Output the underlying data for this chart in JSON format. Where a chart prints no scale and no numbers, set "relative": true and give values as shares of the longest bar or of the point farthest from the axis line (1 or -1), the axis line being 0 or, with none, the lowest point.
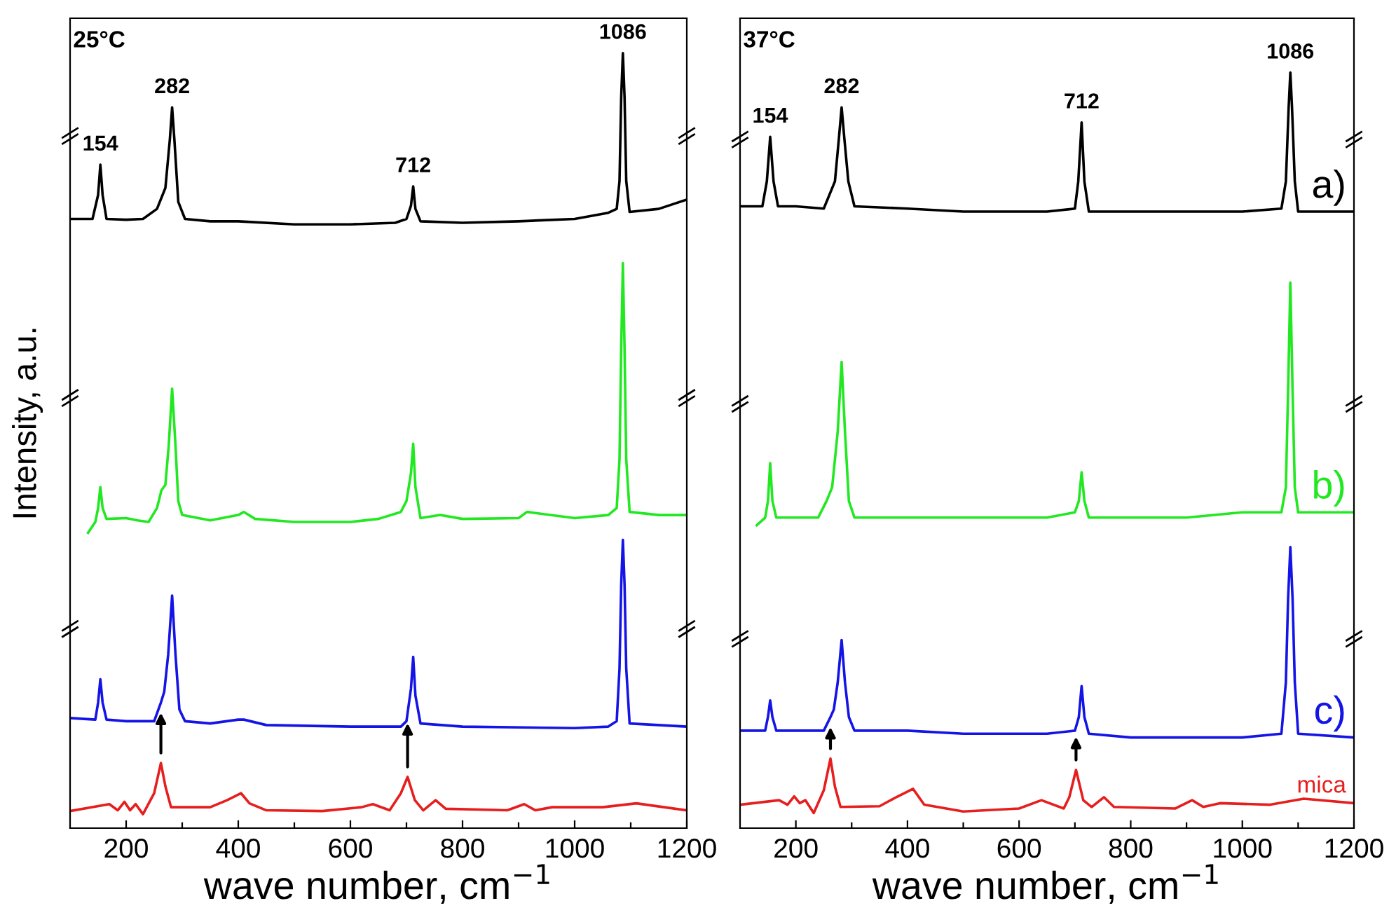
{
  "chart_data": [
    {
      "type": "line",
      "relative": true,
      "xlabel": "wave number, cm$^{−1}$",
      "ylabel": "Intensity, a.u.",
      "xlim": [
        100,
        1200
      ],
      "xticks": [
        200,
        {
          "value": 300,
          "label": null
        },
        400,
        {
          "value": 500,
          "label": null
        },
        600,
        {
          "value": 700,
          "label": null
        },
        800,
        {
          "value": 900,
          "label": null
        },
        1000,
        {
          "value": 1100,
          "label": null
        },
        1200
      ],
      "tick_labels": "x",
      "annotations": [
        "25°C",
        {
          "text": "154",
          "x": 154,
          "y": 0.856
        },
        {
          "text": "282",
          "x": 282,
          "y": 0.93
        },
        {
          "text": "712",
          "x": 712,
          "y": 0.828
        },
        {
          "text": "1086",
          "x": 1086,
          "y": 1
        }
      ],
      "series": [
        {
          "color": "#000000",
          "x": [
            100,
            140,
            150,
            154,
            158,
            165,
            200,
            230,
            255,
            270,
            278,
            282,
            286,
            293,
            305,
            350,
            400,
            500,
            600,
            680,
            700,
            708,
            712,
            716,
            725,
            800,
            900,
            1000,
            1060,
            1075,
            1080,
            1083,
            1086,
            1089,
            1092,
            1098,
            1150,
            1200
          ],
          "values": [
            0.786,
            0.786,
            0.817,
            0.856,
            0.817,
            0.786,
            0.785,
            0.786,
            0.799,
            0.826,
            0.889,
            0.93,
            0.889,
            0.808,
            0.786,
            0.783,
            0.783,
            0.779,
            0.779,
            0.781,
            0.786,
            0.803,
            0.828,
            0.799,
            0.783,
            0.781,
            0.783,
            0.786,
            0.794,
            0.799,
            0.835,
            0.943,
            1,
            0.943,
            0.835,
            0.795,
            0.799,
            0.811
          ]
        },
        {
          "color": "#22e822",
          "x": [
            132,
            145,
            150,
            154,
            158,
            165,
            200,
            220,
            240,
            255,
            263,
            270,
            276,
            282,
            288,
            293,
            300,
            350,
            400,
            410,
            430,
            500,
            600,
            650,
            690,
            700,
            708,
            712,
            716,
            725,
            760,
            800,
            900,
            915,
            1000,
            1060,
            1075,
            1080,
            1083,
            1086,
            1089,
            1092,
            1098,
            1150,
            1200
          ],
          "values": [
            0.381,
            0.395,
            0.413,
            0.44,
            0.413,
            0.399,
            0.4,
            0.397,
            0.395,
            0.413,
            0.436,
            0.443,
            0.494,
            0.567,
            0.494,
            0.422,
            0.404,
            0.397,
            0.404,
            0.408,
            0.399,
            0.395,
            0.395,
            0.399,
            0.408,
            0.422,
            0.458,
            0.496,
            0.44,
            0.4,
            0.404,
            0.399,
            0.4,
            0.408,
            0.4,
            0.404,
            0.413,
            0.476,
            0.619,
            0.729,
            0.619,
            0.476,
            0.408,
            0.404,
            0.404
          ]
        },
        {
          "color": "#1414e6",
          "x": [
            100,
            145,
            150,
            154,
            158,
            165,
            200,
            250,
            262,
            268,
            275,
            282,
            288,
            295,
            305,
            350,
            400,
            410,
            450,
            600,
            690,
            700,
            708,
            712,
            716,
            725,
            800,
            1000,
            1060,
            1075,
            1080,
            1083,
            1086,
            1089,
            1092,
            1098,
            1200
          ],
          "values": [
            0.142,
            0.14,
            0.162,
            0.192,
            0.162,
            0.14,
            0.138,
            0.138,
            0.162,
            0.176,
            0.224,
            0.3,
            0.224,
            0.153,
            0.138,
            0.135,
            0.14,
            0.14,
            0.133,
            0.131,
            0.131,
            0.138,
            0.18,
            0.221,
            0.171,
            0.135,
            0.131,
            0.129,
            0.131,
            0.138,
            0.206,
            0.314,
            0.372,
            0.314,
            0.206,
            0.135,
            0.131
          ]
        },
        {
          "color": "#e61e1e",
          "x": [
            100,
            170,
            185,
            197,
            207,
            217,
            230,
            250,
            262,
            270,
            280,
            350,
            380,
            405,
            420,
            450,
            550,
            620,
            640,
            670,
            690,
            702,
            715,
            730,
            752,
            770,
            880,
            910,
            930,
            960,
            1050,
            1110,
            1200
          ],
          "values": [
            0.022,
            0.031,
            0.023,
            0.034,
            0.023,
            0.031,
            0.018,
            0.045,
            0.084,
            0.054,
            0.027,
            0.027,
            0.036,
            0.045,
            0.032,
            0.023,
            0.022,
            0.027,
            0.031,
            0.023,
            0.045,
            0.066,
            0.036,
            0.023,
            0.036,
            0.025,
            0.023,
            0.031,
            0.023,
            0.027,
            0.027,
            0.032,
            0.023
          ]
        }
      ]
    },
    {
      "type": "line",
      "relative": true,
      "xlabel": "wave number, cm$^{−1}$",
      "xlim": [
        100,
        1200
      ],
      "xticks": [
        200,
        {
          "value": 300,
          "label": null
        },
        400,
        {
          "value": 500,
          "label": null
        },
        600,
        {
          "value": 700,
          "label": null
        },
        800,
        {
          "value": 900,
          "label": null
        },
        1000,
        {
          "value": 1100,
          "label": null
        },
        1200
      ],
      "tick_labels": "x",
      "annotations": [
        "37°C",
        {
          "text": "154",
          "x": 154,
          "y": 0.915
        },
        {
          "text": "282",
          "x": 282,
          "y": 0.954
        },
        {
          "text": "712",
          "x": 712,
          "y": 0.934
        },
        {
          "text": "1086",
          "x": 1086,
          "y": 1
        }
      ],
      "series": [
        {
          "name": "a)",
          "color": "#000000",
          "x": [
            100,
            140,
            148,
            154,
            160,
            168,
            200,
            250,
            270,
            277,
            282,
            287,
            294,
            305,
            400,
            500,
            650,
            700,
            706,
            712,
            717,
            725,
            800,
            900,
            1000,
            1070,
            1078,
            1083,
            1086,
            1089,
            1094,
            1100,
            1200
          ],
          "values": [
            0.823,
            0.823,
            0.856,
            0.915,
            0.856,
            0.823,
            0.823,
            0.82,
            0.856,
            0.912,
            0.954,
            0.912,
            0.856,
            0.823,
            0.82,
            0.816,
            0.816,
            0.82,
            0.856,
            0.934,
            0.856,
            0.816,
            0.816,
            0.816,
            0.816,
            0.82,
            0.856,
            0.954,
            1,
            0.954,
            0.856,
            0.816,
            0.816
          ]
        },
        {
          "name": "b)",
          "color": "#22e822",
          "x": [
            130,
            145,
            150,
            154,
            158,
            165,
            200,
            240,
            255,
            265,
            275,
            282,
            288,
            295,
            305,
            400,
            500,
            650,
            700,
            707,
            712,
            717,
            725,
            800,
            900,
            1000,
            1070,
            1078,
            1082,
            1086,
            1090,
            1094,
            1100,
            1200
          ],
          "values": [
            0.401,
            0.411,
            0.433,
            0.483,
            0.433,
            0.411,
            0.411,
            0.411,
            0.433,
            0.451,
            0.525,
            0.617,
            0.525,
            0.433,
            0.411,
            0.411,
            0.411,
            0.411,
            0.418,
            0.433,
            0.471,
            0.433,
            0.411,
            0.411,
            0.411,
            0.418,
            0.418,
            0.451,
            0.58,
            0.722,
            0.58,
            0.451,
            0.418,
            0.418
          ]
        },
        {
          "name": "c)",
          "color": "#1414e6",
          "x": [
            100,
            145,
            150,
            154,
            158,
            165,
            200,
            250,
            262,
            268,
            275,
            282,
            288,
            295,
            305,
            400,
            500,
            650,
            700,
            707,
            712,
            717,
            725,
            800,
            1000,
            1070,
            1078,
            1082,
            1086,
            1090,
            1094,
            1100,
            1200
          ],
          "values": [
            0.129,
            0.129,
            0.147,
            0.169,
            0.147,
            0.129,
            0.129,
            0.129,
            0.147,
            0.157,
            0.193,
            0.249,
            0.193,
            0.147,
            0.129,
            0.129,
            0.125,
            0.125,
            0.129,
            0.147,
            0.188,
            0.147,
            0.125,
            0.12,
            0.12,
            0.125,
            0.193,
            0.304,
            0.372,
            0.304,
            0.193,
            0.125,
            0.12
          ]
        },
        {
          "name": "mica",
          "color": "#e61e1e",
          "x": [
            100,
            170,
            185,
            197,
            207,
            217,
            232,
            250,
            262,
            270,
            280,
            350,
            380,
            410,
            430,
            500,
            600,
            640,
            680,
            690,
            702,
            715,
            730,
            752,
            770,
            880,
            910,
            930,
            960,
            1050,
            1110,
            1200
          ],
          "values": [
            0.031,
            0.037,
            0.031,
            0.042,
            0.033,
            0.037,
            0.02,
            0.05,
            0.092,
            0.055,
            0.028,
            0.029,
            0.041,
            0.052,
            0.031,
            0.022,
            0.026,
            0.037,
            0.026,
            0.041,
            0.077,
            0.037,
            0.028,
            0.041,
            0.028,
            0.026,
            0.037,
            0.028,
            0.033,
            0.031,
            0.039,
            0.033
          ]
        }
      ]
    }
  ]
}
